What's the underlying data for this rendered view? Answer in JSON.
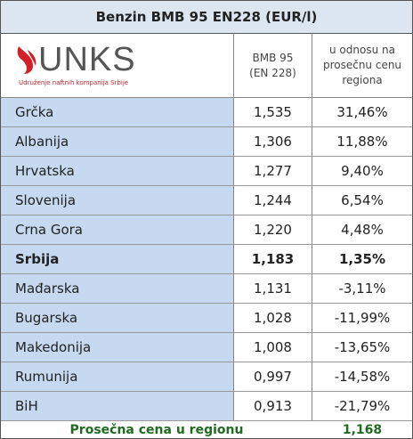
{
  "title": "Benzin BMB 95 EN228 (EUR/l)",
  "logo": {
    "name": "UNKS",
    "subtitle": "Udruženje naftnih kompanija Srbije"
  },
  "header": {
    "price": [
      "BMB 95",
      "(EN 228)"
    ],
    "diff": [
      "u odnosu na",
      "prosečnu cenu",
      "regiona"
    ]
  },
  "rows": [
    {
      "country": "Grčka",
      "price": "1,535",
      "diff": "31,46%"
    },
    {
      "country": "Albanija",
      "price": "1,306",
      "diff": "11,88%"
    },
    {
      "country": "Hrvatska",
      "price": "1,277",
      "diff": "9,40%"
    },
    {
      "country": "Slovenija",
      "price": "1,244",
      "diff": "6,54%"
    },
    {
      "country": "Crna Gora",
      "price": "1,220",
      "diff": "4,48%"
    },
    {
      "country": "Srbija",
      "price": "1,183",
      "diff": "1,35%",
      "bold": true
    },
    {
      "country": "Mađarska",
      "price": "1,131",
      "diff": "-3,11%"
    },
    {
      "country": "Bugarska",
      "price": "1,028",
      "diff": "-11,99%"
    },
    {
      "country": "Makedonija",
      "price": "1,008",
      "diff": "-13,65%"
    },
    {
      "country": "Rumunija",
      "price": "0,997",
      "diff": "-14,58%"
    },
    {
      "country": "BiH",
      "price": "0,913",
      "diff": "-21,79%"
    }
  ],
  "footer": {
    "label": "Prosečna cena u regionu",
    "value": "1,168"
  }
}
